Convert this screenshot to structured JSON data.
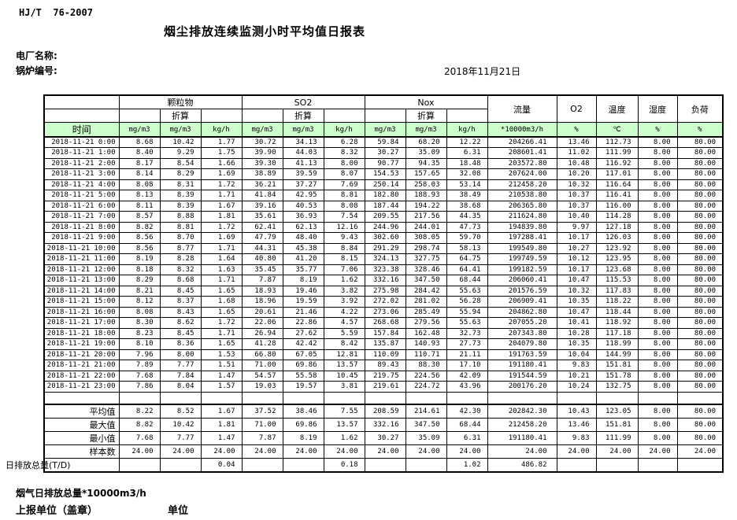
{
  "header": {
    "standard": "HJ/T  76-2007",
    "title": "烟尘排放连续监测小时平均值日报表",
    "plant_label": "电厂名称:",
    "boiler_label": "锅炉编号:",
    "date": "2018年11月21日"
  },
  "table": {
    "time_header": "时间",
    "conv_label": "折算",
    "header_bg": "#ccffcc",
    "groups": [
      {
        "label": "颗粒物"
      },
      {
        "label": "SO2"
      },
      {
        "label": "Nox"
      }
    ],
    "single_cols": [
      "流量",
      "O2",
      "温度",
      "湿度",
      "负荷"
    ],
    "units": [
      "mg/m3",
      "mg/m3",
      "kg/h",
      "mg/m3",
      "mg/m3",
      "kg/h",
      "mg/m3",
      "mg/m3",
      "kg/h",
      "*10000m3/h",
      "%",
      "℃",
      "%",
      "%"
    ],
    "rows": [
      {
        "time": "2018-11-21 0:00",
        "values": [
          "8.68",
          "10.42",
          "1.77",
          "30.72",
          "34.13",
          "6.28",
          "59.84",
          "68.20",
          "12.22",
          "204266.41",
          "13.46",
          "112.73",
          "8.00",
          "80.00"
        ]
      },
      {
        "time": "2018-11-21 1:00",
        "values": [
          "8.40",
          "9.29",
          "1.75",
          "39.90",
          "44.03",
          "8.32",
          "30.27",
          "35.09",
          "6.31",
          "208601.41",
          "11.02",
          "111.99",
          "8.00",
          "80.00"
        ]
      },
      {
        "time": "2018-11-21 2:00",
        "values": [
          "8.17",
          "8.54",
          "1.66",
          "39.30",
          "41.13",
          "8.00",
          "90.77",
          "94.35",
          "18.48",
          "203572.80",
          "10.48",
          "116.92",
          "8.00",
          "80.00"
        ]
      },
      {
        "time": "2018-11-21 3:00",
        "values": [
          "8.14",
          "8.29",
          "1.69",
          "38.89",
          "39.59",
          "8.07",
          "154.53",
          "157.65",
          "32.08",
          "207624.00",
          "10.20",
          "117.01",
          "8.00",
          "80.00"
        ]
      },
      {
        "time": "2018-11-21 4:00",
        "values": [
          "8.08",
          "8.31",
          "1.72",
          "36.21",
          "37.27",
          "7.69",
          "250.14",
          "258.03",
          "53.14",
          "212458.20",
          "10.32",
          "116.64",
          "8.00",
          "80.00"
        ]
      },
      {
        "time": "2018-11-21 5:00",
        "values": [
          "8.13",
          "8.39",
          "1.71",
          "41.84",
          "42.95",
          "8.81",
          "182.80",
          "188.93",
          "38.49",
          "210538.80",
          "10.37",
          "116.41",
          "8.00",
          "80.00"
        ]
      },
      {
        "time": "2018-11-21 6:00",
        "values": [
          "8.11",
          "8.39",
          "1.67",
          "39.16",
          "40.53",
          "8.08",
          "187.44",
          "194.22",
          "38.68",
          "206365.80",
          "10.37",
          "116.00",
          "8.00",
          "80.00"
        ]
      },
      {
        "time": "2018-11-21 7:00",
        "values": [
          "8.57",
          "8.88",
          "1.81",
          "35.61",
          "36.93",
          "7.54",
          "209.55",
          "217.56",
          "44.35",
          "211624.80",
          "10.40",
          "114.28",
          "8.00",
          "80.00"
        ]
      },
      {
        "time": "2018-11-21 8:00",
        "values": [
          "8.82",
          "8.81",
          "1.72",
          "62.41",
          "62.13",
          "12.16",
          "244.96",
          "244.01",
          "47.73",
          "194839.80",
          "9.97",
          "127.18",
          "8.00",
          "80.00"
        ]
      },
      {
        "time": "2018-11-21 9:00",
        "values": [
          "8.56",
          "8.70",
          "1.69",
          "47.79",
          "48.40",
          "9.43",
          "302.60",
          "308.05",
          "59.70",
          "197288.41",
          "10.17",
          "126.03",
          "8.00",
          "80.00"
        ]
      },
      {
        "time": "2018-11-21 10:00",
        "values": [
          "8.56",
          "8.77",
          "1.71",
          "44.31",
          "45.38",
          "8.84",
          "291.29",
          "298.74",
          "58.13",
          "199549.80",
          "10.27",
          "123.92",
          "8.00",
          "80.00"
        ]
      },
      {
        "time": "2018-11-21 11:00",
        "values": [
          "8.19",
          "8.28",
          "1.64",
          "40.80",
          "41.20",
          "8.15",
          "324.13",
          "327.75",
          "64.75",
          "199749.59",
          "10.12",
          "123.95",
          "8.00",
          "80.00"
        ]
      },
      {
        "time": "2018-11-21 12:00",
        "values": [
          "8.18",
          "8.32",
          "1.63",
          "35.45",
          "35.77",
          "7.06",
          "323.38",
          "328.46",
          "64.41",
          "199182.59",
          "10.17",
          "123.68",
          "8.00",
          "80.00"
        ]
      },
      {
        "time": "2018-11-21 13:00",
        "values": [
          "8.29",
          "8.68",
          "1.71",
          "7.87",
          "8.19",
          "1.62",
          "332.16",
          "347.50",
          "68.44",
          "206060.41",
          "10.47",
          "115.53",
          "8.00",
          "80.00"
        ]
      },
      {
        "time": "2018-11-21 14:00",
        "values": [
          "8.21",
          "8.45",
          "1.65",
          "18.93",
          "19.46",
          "3.82",
          "275.98",
          "284.42",
          "55.63",
          "201576.59",
          "10.32",
          "117.83",
          "8.00",
          "80.00"
        ]
      },
      {
        "time": "2018-11-21 15:00",
        "values": [
          "8.12",
          "8.37",
          "1.68",
          "18.96",
          "19.59",
          "3.92",
          "272.02",
          "281.02",
          "56.28",
          "206909.41",
          "10.35",
          "118.22",
          "8.00",
          "80.00"
        ]
      },
      {
        "time": "2018-11-21 16:00",
        "values": [
          "8.08",
          "8.43",
          "1.65",
          "20.61",
          "21.46",
          "4.22",
          "273.06",
          "285.49",
          "55.94",
          "204862.80",
          "10.47",
          "118.44",
          "8.00",
          "80.00"
        ]
      },
      {
        "time": "2018-11-21 17:00",
        "values": [
          "8.30",
          "8.62",
          "1.72",
          "22.06",
          "22.86",
          "4.57",
          "268.68",
          "279.56",
          "55.63",
          "207055.20",
          "10.41",
          "118.92",
          "8.00",
          "80.00"
        ]
      },
      {
        "time": "2018-11-21 18:00",
        "values": [
          "8.23",
          "8.45",
          "1.71",
          "26.94",
          "27.62",
          "5.59",
          "157.84",
          "162.48",
          "32.73",
          "207343.80",
          "10.28",
          "117.18",
          "8.00",
          "80.00"
        ]
      },
      {
        "time": "2018-11-21 19:00",
        "values": [
          "8.10",
          "8.36",
          "1.65",
          "41.28",
          "42.42",
          "8.42",
          "135.87",
          "140.93",
          "27.73",
          "204079.80",
          "10.35",
          "118.99",
          "8.00",
          "80.00"
        ]
      },
      {
        "time": "2018-11-21 20:00",
        "values": [
          "7.96",
          "8.00",
          "1.53",
          "66.80",
          "67.05",
          "12.81",
          "110.09",
          "110.71",
          "21.11",
          "191763.59",
          "10.04",
          "144.99",
          "8.00",
          "80.00"
        ]
      },
      {
        "time": "2018-11-21 21:00",
        "values": [
          "7.89",
          "7.77",
          "1.51",
          "71.00",
          "69.86",
          "13.57",
          "89.43",
          "88.30",
          "17.10",
          "191180.41",
          "9.83",
          "151.81",
          "8.00",
          "80.00"
        ]
      },
      {
        "time": "2018-11-21 22:00",
        "values": [
          "7.68",
          "7.84",
          "1.47",
          "54.57",
          "55.58",
          "10.45",
          "219.75",
          "224.56",
          "42.09",
          "191544.59",
          "10.21",
          "151.78",
          "8.00",
          "80.00"
        ]
      },
      {
        "time": "2018-11-21 23:00",
        "values": [
          "7.86",
          "8.04",
          "1.57",
          "19.03",
          "19.57",
          "3.81",
          "219.61",
          "224.72",
          "43.96",
          "200176.20",
          "10.24",
          "132.75",
          "8.00",
          "80.00"
        ]
      }
    ],
    "summary": [
      {
        "label": "平均值",
        "values": [
          "8.22",
          "8.52",
          "1.67",
          "37.52",
          "38.46",
          "7.55",
          "208.59",
          "214.61",
          "42.30",
          "202842.30",
          "10.43",
          "123.05",
          "8.00",
          "80.00"
        ]
      },
      {
        "label": "最大值",
        "values": [
          "8.82",
          "10.42",
          "1.81",
          "71.00",
          "69.86",
          "13.57",
          "332.16",
          "347.50",
          "68.44",
          "212458.20",
          "13.46",
          "151.81",
          "8.00",
          "80.00"
        ]
      },
      {
        "label": "最小值",
        "values": [
          "7.68",
          "7.77",
          "1.47",
          "7.87",
          "8.19",
          "1.62",
          "30.27",
          "35.09",
          "6.31",
          "191180.41",
          "9.83",
          "111.99",
          "8.00",
          "80.00"
        ]
      },
      {
        "label": "样本数",
        "values": [
          "24.00",
          "24.00",
          "24.00",
          "24.00",
          "24.00",
          "24.00",
          "24.00",
          "24.00",
          "24.00",
          "24.00",
          "24.00",
          "24.00",
          "24.00",
          "24.00"
        ]
      },
      {
        "label": "日排放总量(T/D)",
        "values": [
          "",
          "",
          "0.04",
          "",
          "",
          "0.18",
          "",
          "",
          "1.02",
          "486.82",
          "",
          "",
          "",
          ""
        ]
      }
    ]
  },
  "footer": {
    "flue_total_label": "烟气日排放总量*10000m3/h",
    "report_unit_label": "上报单位（盖章）",
    "unit_label": "单位"
  }
}
